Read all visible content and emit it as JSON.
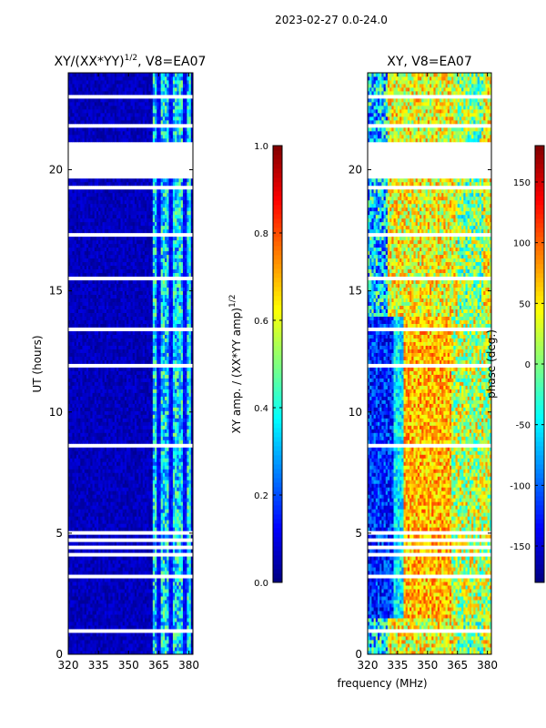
{
  "suptitle": "2023-02-27 0.0-24.0",
  "colors": {
    "flag_color": "#ffffff",
    "colormap": [
      "#00007f",
      "#0000ff",
      "#007fff",
      "#00ffff",
      "#7fff7f",
      "#ffff00",
      "#ff7f00",
      "#ff0000",
      "#7f0000"
    ]
  },
  "chart_data": [
    {
      "type": "heatmap",
      "title": "XY/(XX*YY)^1/2, V8=EA07",
      "title_main": "XY/(XX*YY)",
      "title_exp": "1/2",
      "title_suffix": ", V8=EA07",
      "xlabel": "",
      "ylabel": "UT (hours)",
      "xlim": [
        320,
        382
      ],
      "ylim": [
        0,
        24
      ],
      "xticks": [
        "320",
        "335",
        "350",
        "365",
        "380"
      ],
      "yticks": [
        "0",
        "5",
        "10",
        "15",
        "20"
      ],
      "colorbar": {
        "label": "XY amp. / (XX*YY amp)^1/2",
        "label_main": "XY amp. / (XX*YY amp)",
        "label_exp": "1/2",
        "range": [
          0.0,
          1.0
        ],
        "ticks": [
          "0.0",
          "0.2",
          "0.4",
          "0.6",
          "0.8",
          "1.0"
        ]
      },
      "description": "Mostly low normalized amplitude (~0.0-0.1) across 320-362 MHz; elevated values (~0.3-0.6) in the 362-380 MHz band; flagged (white) rows across time, large flagged block 19.7-21.2 h"
    },
    {
      "type": "heatmap",
      "title": "XY, V8=EA07",
      "xlabel": "frequency (MHz)",
      "ylabel": "",
      "xlim": [
        320,
        382
      ],
      "ylim": [
        0,
        24
      ],
      "xticks": [
        "320",
        "335",
        "350",
        "365",
        "380"
      ],
      "yticks": [
        "0",
        "5",
        "10",
        "15",
        "20"
      ],
      "colorbar": {
        "label": "phase (deg.)",
        "range": [
          -180,
          180
        ],
        "ticks": [
          "-150",
          "-100",
          "-50",
          "0",
          "50",
          "100",
          "150"
        ]
      },
      "description": "XY phase, roughly 0-150 deg in 340-360 MHz, negative (-150 to -50) near 320-335 MHz during 5-14 h; flagged rows match left panel"
    }
  ]
}
